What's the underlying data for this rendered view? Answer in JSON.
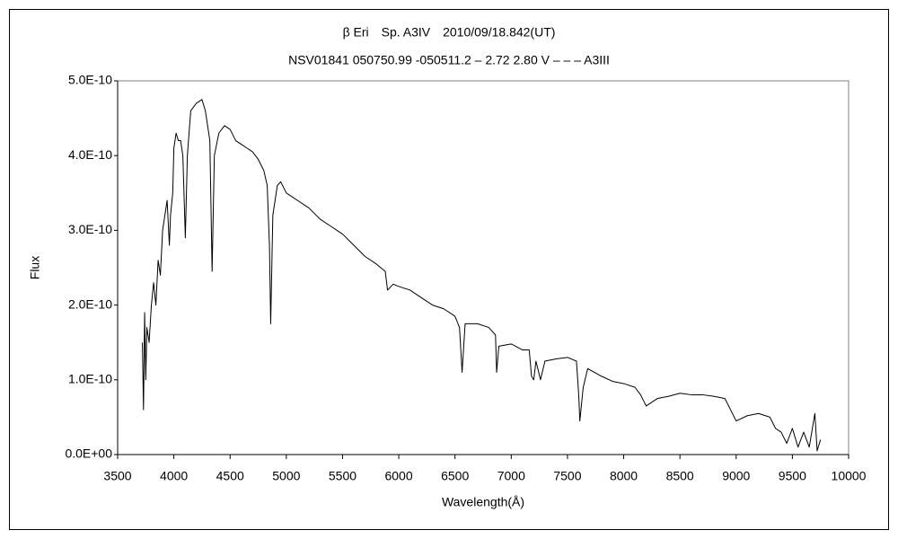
{
  "chart_data": {
    "type": "line",
    "title": "β Eri　Sp. A3IV　2010/09/18.842(UT)",
    "subtitle": "NSV01841 050750.99 -050511.2 – 2.72 2.80 V – – – A3III",
    "x_label": "Wavelength(Å)",
    "y_label": "Flux",
    "xlim": [
      3500,
      10000
    ],
    "xticks": [
      3500,
      4000,
      4500,
      5000,
      5500,
      6000,
      6500,
      7000,
      7500,
      8000,
      8500,
      9000,
      9500,
      10000
    ],
    "ylim": [
      0,
      5e-10
    ],
    "yticks": [
      {
        "value": 0,
        "label": "0.0E+00"
      },
      {
        "value": 1e-10,
        "label": "1.0E-10"
      },
      {
        "value": 2e-10,
        "label": "2.0E-10"
      },
      {
        "value": 3e-10,
        "label": "3.0E-10"
      },
      {
        "value": 4e-10,
        "label": "4.0E-10"
      },
      {
        "value": 5e-10,
        "label": "5.0E-10"
      }
    ],
    "grid": false,
    "series": [
      {
        "color": "#000000",
        "x": [
          3720,
          3730,
          3740,
          3750,
          3760,
          3780,
          3800,
          3820,
          3840,
          3860,
          3880,
          3900,
          3920,
          3940,
          3960,
          3970,
          3990,
          4000,
          4020,
          4040,
          4060,
          4080,
          4102,
          4120,
          4150,
          4200,
          4250,
          4280,
          4300,
          4320,
          4340,
          4360,
          4400,
          4450,
          4500,
          4550,
          4600,
          4650,
          4700,
          4750,
          4800,
          4830,
          4850,
          4861,
          4880,
          4920,
          4950,
          5000,
          5100,
          5200,
          5300,
          5400,
          5500,
          5600,
          5700,
          5800,
          5880,
          5900,
          5950,
          6000,
          6100,
          6200,
          6300,
          6400,
          6500,
          6540,
          6563,
          6590,
          6700,
          6800,
          6860,
          6870,
          6890,
          7000,
          7100,
          7160,
          7180,
          7200,
          7220,
          7260,
          7300,
          7400,
          7500,
          7580,
          7600,
          7610,
          7640,
          7680,
          7800,
          7900,
          8000,
          8100,
          8150,
          8200,
          8300,
          8400,
          8500,
          8600,
          8700,
          8800,
          8900,
          8950,
          9000,
          9100,
          9200,
          9300,
          9350,
          9400,
          9450,
          9500,
          9550,
          9600,
          9650,
          9700,
          9720,
          9750
        ],
        "values": [
          1.5e-10,
          6e-11,
          1.9e-10,
          1e-10,
          1.7e-10,
          1.5e-10,
          2e-10,
          2.3e-10,
          2e-10,
          2.6e-10,
          2.4e-10,
          3e-10,
          3.2e-10,
          3.4e-10,
          2.8e-10,
          3.2e-10,
          3.5e-10,
          4.1e-10,
          4.3e-10,
          4.2e-10,
          4.2e-10,
          4e-10,
          2.9e-10,
          4e-10,
          4.6e-10,
          4.7e-10,
          4.75e-10,
          4.6e-10,
          4.4e-10,
          4.2e-10,
          2.45e-10,
          4e-10,
          4.3e-10,
          4.4e-10,
          4.35e-10,
          4.2e-10,
          4.15e-10,
          4.1e-10,
          4.05e-10,
          3.95e-10,
          3.8e-10,
          3.6e-10,
          2.8e-10,
          1.75e-10,
          3.2e-10,
          3.6e-10,
          3.65e-10,
          3.5e-10,
          3.4e-10,
          3.3e-10,
          3.15e-10,
          3.05e-10,
          2.95e-10,
          2.8e-10,
          2.65e-10,
          2.55e-10,
          2.45e-10,
          2.2e-10,
          2.28e-10,
          2.25e-10,
          2.2e-10,
          2.1e-10,
          2e-10,
          1.95e-10,
          1.85e-10,
          1.7e-10,
          1.1e-10,
          1.75e-10,
          1.75e-10,
          1.7e-10,
          1.6e-10,
          1.1e-10,
          1.45e-10,
          1.48e-10,
          1.4e-10,
          1.4e-10,
          1.05e-10,
          1e-10,
          1.25e-10,
          1e-10,
          1.25e-10,
          1.28e-10,
          1.3e-10,
          1.25e-10,
          8e-11,
          4.5e-11,
          9e-11,
          1.15e-10,
          1.05e-10,
          9.8e-11,
          9.5e-11,
          9e-11,
          8e-11,
          6.5e-11,
          7.5e-11,
          7.8e-11,
          8.2e-11,
          8e-11,
          8e-11,
          7.8e-11,
          7.5e-11,
          6e-11,
          4.5e-11,
          5.2e-11,
          5.5e-11,
          5e-11,
          3.5e-11,
          3e-11,
          1.5e-11,
          3.5e-11,
          1e-11,
          3e-11,
          1e-11,
          5.5e-11,
          5e-12,
          2e-11
        ]
      }
    ]
  }
}
